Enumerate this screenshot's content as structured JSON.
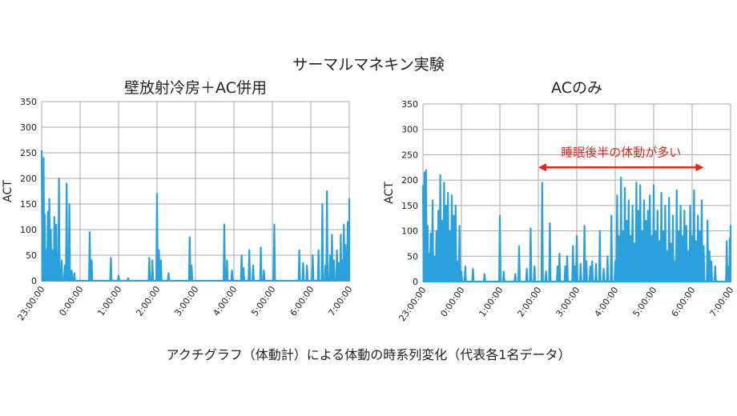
{
  "figure_title": "サーマルマネキン実験",
  "caption": "アクチグラフ（体動計）による体動の時系列変化（代表各1名データ）",
  "colors": {
    "line": "#2aa1dc",
    "grid": "#a9a9a9",
    "annotation": "#e0261e"
  },
  "chart_data": [
    {
      "type": "line",
      "title": "壁放射冷房＋AC併用",
      "ylabel": "ACT",
      "xlabel": "",
      "ylim": [
        0,
        350
      ],
      "yticks": [
        0,
        50,
        100,
        150,
        200,
        250,
        300,
        350
      ],
      "xrange": [
        0,
        8
      ],
      "xticks": [
        "23:00:00",
        "0:00:00",
        "1:00:00",
        "2:00:00",
        "3:00:00",
        "4:00:00",
        "5:00:00",
        "6:00:00",
        "7:00:00"
      ],
      "peaks": [
        [
          0.0,
          255
        ],
        [
          0.05,
          240
        ],
        [
          0.08,
          130
        ],
        [
          0.12,
          60
        ],
        [
          0.16,
          135
        ],
        [
          0.2,
          160
        ],
        [
          0.24,
          100
        ],
        [
          0.28,
          60
        ],
        [
          0.33,
          125
        ],
        [
          0.38,
          110
        ],
        [
          0.45,
          200
        ],
        [
          0.52,
          40
        ],
        [
          0.6,
          30
        ],
        [
          0.65,
          190
        ],
        [
          0.72,
          150
        ],
        [
          0.78,
          20
        ],
        [
          0.85,
          15
        ],
        [
          1.25,
          95
        ],
        [
          1.3,
          40
        ],
        [
          1.8,
          45
        ],
        [
          2.0,
          10
        ],
        [
          2.25,
          5
        ],
        [
          2.8,
          45
        ],
        [
          2.88,
          40
        ],
        [
          3.0,
          170
        ],
        [
          3.05,
          60
        ],
        [
          3.1,
          40
        ],
        [
          3.3,
          15
        ],
        [
          3.85,
          85
        ],
        [
          3.9,
          30
        ],
        [
          4.75,
          110
        ],
        [
          4.82,
          40
        ],
        [
          4.95,
          20
        ],
        [
          5.2,
          50
        ],
        [
          5.25,
          25
        ],
        [
          5.4,
          60
        ],
        [
          5.5,
          30
        ],
        [
          5.7,
          65
        ],
        [
          5.78,
          20
        ],
        [
          6.05,
          110
        ],
        [
          6.7,
          60
        ],
        [
          6.8,
          35
        ],
        [
          6.9,
          30
        ],
        [
          7.05,
          50
        ],
        [
          7.2,
          60
        ],
        [
          7.3,
          150
        ],
        [
          7.38,
          30
        ],
        [
          7.42,
          175
        ],
        [
          7.5,
          50
        ],
        [
          7.55,
          90
        ],
        [
          7.6,
          40
        ],
        [
          7.68,
          60
        ],
        [
          7.72,
          35
        ],
        [
          7.78,
          90
        ],
        [
          7.82,
          40
        ],
        [
          7.86,
          110
        ],
        [
          7.9,
          70
        ],
        [
          7.96,
          115
        ],
        [
          7.98,
          50
        ],
        [
          8.05,
          80
        ],
        [
          8.1,
          30
        ],
        [
          8.2,
          95
        ],
        [
          8.3,
          45
        ],
        [
          8.35,
          160
        ]
      ],
      "annotation": null
    },
    {
      "type": "line",
      "title": "ACのみ",
      "ylabel": "ACT",
      "xlabel": "",
      "ylim": [
        0,
        350
      ],
      "yticks": [
        0,
        50,
        100,
        150,
        200,
        250,
        300,
        350
      ],
      "xrange": [
        0,
        8
      ],
      "xticks": [
        "23:00:00",
        "0:00:00",
        "1:00:00",
        "2:00:00",
        "3:00:00",
        "4:00:00",
        "5:00:00",
        "6:00:00",
        "7:00:00"
      ],
      "peaks": [
        [
          0.0,
          190
        ],
        [
          0.04,
          215
        ],
        [
          0.08,
          220
        ],
        [
          0.12,
          110
        ],
        [
          0.16,
          55
        ],
        [
          0.2,
          95
        ],
        [
          0.25,
          160
        ],
        [
          0.3,
          50
        ],
        [
          0.35,
          100
        ],
        [
          0.4,
          140
        ],
        [
          0.45,
          210
        ],
        [
          0.5,
          120
        ],
        [
          0.55,
          195
        ],
        [
          0.6,
          150
        ],
        [
          0.65,
          175
        ],
        [
          0.7,
          100
        ],
        [
          0.75,
          170
        ],
        [
          0.8,
          130
        ],
        [
          0.85,
          150
        ],
        [
          0.9,
          40
        ],
        [
          0.95,
          110
        ],
        [
          1.0,
          20
        ],
        [
          1.1,
          30
        ],
        [
          1.3,
          25
        ],
        [
          1.6,
          15
        ],
        [
          2.0,
          130
        ],
        [
          2.1,
          20
        ],
        [
          2.4,
          15
        ],
        [
          2.5,
          70
        ],
        [
          2.7,
          25
        ],
        [
          2.8,
          105
        ],
        [
          2.9,
          30
        ],
        [
          3.1,
          195
        ],
        [
          3.2,
          20
        ],
        [
          3.3,
          115
        ],
        [
          3.5,
          30
        ],
        [
          3.55,
          55
        ],
        [
          3.7,
          30
        ],
        [
          3.75,
          50
        ],
        [
          3.9,
          70
        ],
        [
          3.95,
          30
        ],
        [
          4.0,
          90
        ],
        [
          4.1,
          35
        ],
        [
          4.2,
          110
        ],
        [
          4.25,
          40
        ],
        [
          4.35,
          30
        ],
        [
          4.4,
          40
        ],
        [
          4.5,
          35
        ],
        [
          4.6,
          100
        ],
        [
          4.7,
          25
        ],
        [
          4.8,
          50
        ],
        [
          4.9,
          130
        ],
        [
          5.0,
          40
        ],
        [
          5.05,
          170
        ],
        [
          5.1,
          90
        ],
        [
          5.15,
          205
        ],
        [
          5.2,
          100
        ],
        [
          5.25,
          185
        ],
        [
          5.3,
          120
        ],
        [
          5.35,
          160
        ],
        [
          5.4,
          90
        ],
        [
          5.45,
          150
        ],
        [
          5.5,
          75
        ],
        [
          5.55,
          195
        ],
        [
          5.6,
          140
        ],
        [
          5.65,
          190
        ],
        [
          5.7,
          100
        ],
        [
          5.75,
          160
        ],
        [
          5.8,
          120
        ],
        [
          5.85,
          140
        ],
        [
          5.9,
          170
        ],
        [
          5.95,
          90
        ],
        [
          6.0,
          190
        ],
        [
          6.05,
          100
        ],
        [
          6.1,
          140
        ],
        [
          6.15,
          80
        ],
        [
          6.2,
          175
        ],
        [
          6.25,
          100
        ],
        [
          6.3,
          150
        ],
        [
          6.35,
          60
        ],
        [
          6.4,
          165
        ],
        [
          6.45,
          75
        ],
        [
          6.5,
          130
        ],
        [
          6.55,
          40
        ],
        [
          6.6,
          180
        ],
        [
          6.65,
          100
        ],
        [
          6.7,
          150
        ],
        [
          6.75,
          90
        ],
        [
          6.8,
          140
        ],
        [
          6.85,
          110
        ],
        [
          6.9,
          60
        ],
        [
          6.95,
          150
        ],
        [
          7.0,
          90
        ],
        [
          7.05,
          180
        ],
        [
          7.1,
          80
        ],
        [
          7.15,
          130
        ],
        [
          7.2,
          100
        ],
        [
          7.25,
          160
        ],
        [
          7.3,
          70
        ],
        [
          7.4,
          120
        ],
        [
          7.45,
          60
        ],
        [
          7.5,
          40
        ],
        [
          7.6,
          30
        ],
        [
          7.9,
          80
        ],
        [
          7.95,
          30
        ],
        [
          7.98,
          85
        ],
        [
          8.0,
          110
        ]
      ],
      "annotation": {
        "text": "睡眠後半の体動が多い",
        "x_start": 3.0,
        "x_end": 7.3,
        "y": 225
      }
    }
  ]
}
